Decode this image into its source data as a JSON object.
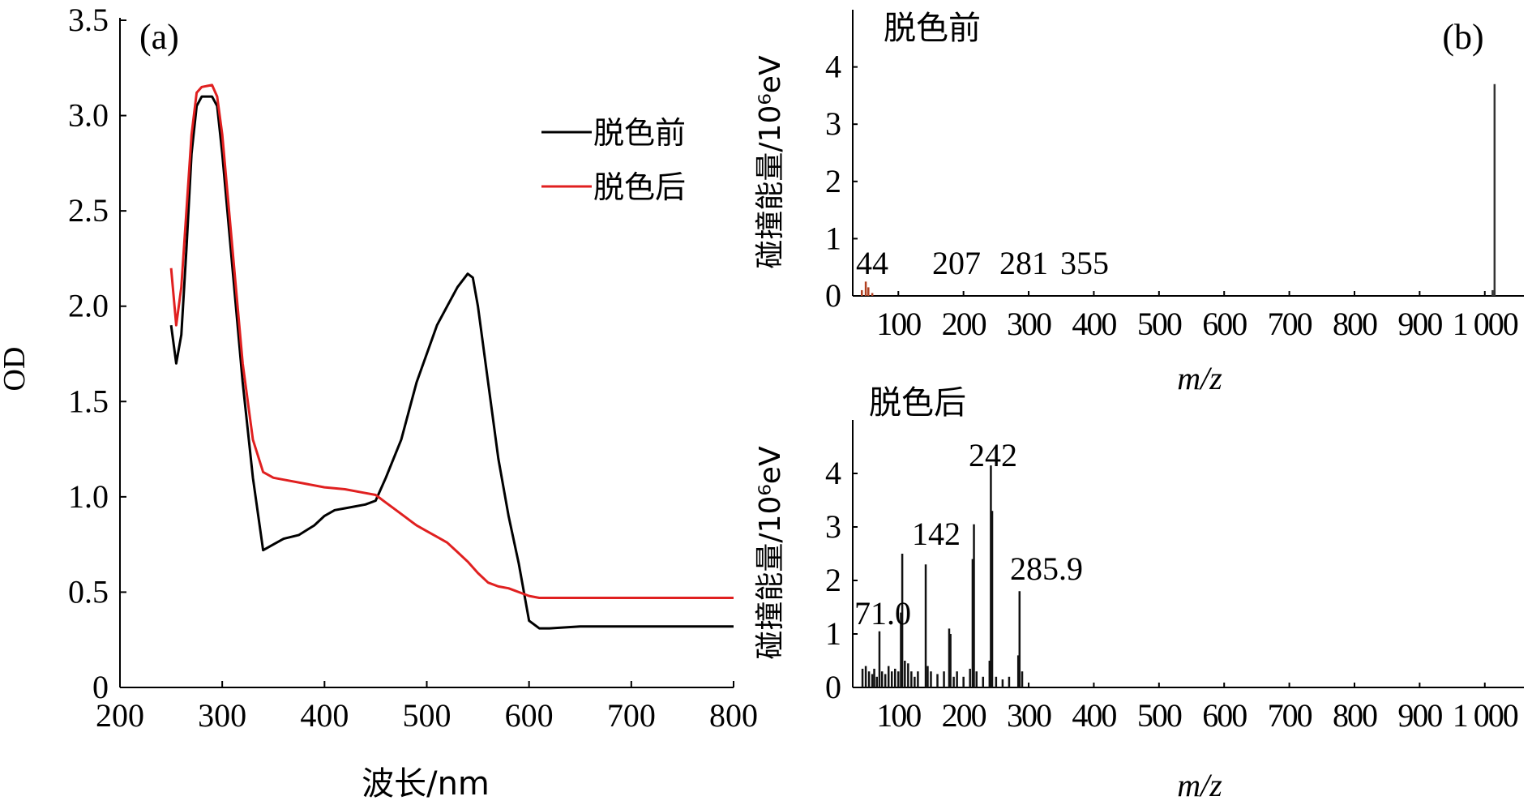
{
  "panel_a": {
    "label": "(a)",
    "xlabel": "波长/nm",
    "ylabel": "OD",
    "chart_data": {
      "type": "line",
      "xlim": [
        200,
        800
      ],
      "ylim": [
        0,
        3.5
      ],
      "x_ticks": [
        200,
        300,
        400,
        500,
        600,
        700,
        800
      ],
      "x_tick_labels": [
        "200",
        "300",
        "400",
        "500",
        "600",
        "700",
        "800"
      ],
      "y_ticks": [
        0,
        0.5,
        1.0,
        1.5,
        2.0,
        2.5,
        3.0,
        3.5
      ],
      "y_tick_labels": [
        "0",
        "0.5",
        "1.0",
        "1.5",
        "2.0",
        "2.5",
        "3.0",
        "3.5"
      ],
      "legend_position": "top-right",
      "series": [
        {
          "name": "脱色前",
          "color": "#000000",
          "points": [
            [
              250,
              1.9
            ],
            [
              255,
              1.7
            ],
            [
              260,
              1.85
            ],
            [
              265,
              2.3
            ],
            [
              270,
              2.8
            ],
            [
              275,
              3.05
            ],
            [
              280,
              3.1
            ],
            [
              290,
              3.1
            ],
            [
              295,
              3.05
            ],
            [
              300,
              2.8
            ],
            [
              310,
              2.2
            ],
            [
              320,
              1.6
            ],
            [
              330,
              1.1
            ],
            [
              340,
              0.72
            ],
            [
              350,
              0.75
            ],
            [
              360,
              0.78
            ],
            [
              375,
              0.8
            ],
            [
              390,
              0.85
            ],
            [
              400,
              0.9
            ],
            [
              410,
              0.93
            ],
            [
              420,
              0.94
            ],
            [
              440,
              0.96
            ],
            [
              450,
              0.98
            ],
            [
              460,
              1.1
            ],
            [
              475,
              1.3
            ],
            [
              490,
              1.6
            ],
            [
              500,
              1.75
            ],
            [
              510,
              1.9
            ],
            [
              520,
              2.0
            ],
            [
              530,
              2.1
            ],
            [
              540,
              2.17
            ],
            [
              545,
              2.15
            ],
            [
              550,
              2.0
            ],
            [
              560,
              1.6
            ],
            [
              570,
              1.2
            ],
            [
              580,
              0.9
            ],
            [
              590,
              0.65
            ],
            [
              600,
              0.35
            ],
            [
              610,
              0.31
            ],
            [
              620,
              0.31
            ],
            [
              650,
              0.32
            ],
            [
              700,
              0.32
            ],
            [
              750,
              0.32
            ],
            [
              800,
              0.32
            ]
          ]
        },
        {
          "name": "脱色后",
          "color": "#e02020",
          "points": [
            [
              250,
              2.2
            ],
            [
              255,
              1.9
            ],
            [
              260,
              2.1
            ],
            [
              265,
              2.5
            ],
            [
              270,
              2.9
            ],
            [
              275,
              3.12
            ],
            [
              280,
              3.15
            ],
            [
              290,
              3.16
            ],
            [
              295,
              3.1
            ],
            [
              300,
              2.9
            ],
            [
              310,
              2.3
            ],
            [
              320,
              1.7
            ],
            [
              330,
              1.3
            ],
            [
              340,
              1.13
            ],
            [
              350,
              1.1
            ],
            [
              360,
              1.09
            ],
            [
              380,
              1.07
            ],
            [
              400,
              1.05
            ],
            [
              420,
              1.04
            ],
            [
              440,
              1.02
            ],
            [
              450,
              1.01
            ],
            [
              460,
              0.97
            ],
            [
              470,
              0.93
            ],
            [
              480,
              0.89
            ],
            [
              490,
              0.85
            ],
            [
              500,
              0.82
            ],
            [
              510,
              0.79
            ],
            [
              520,
              0.76
            ],
            [
              530,
              0.71
            ],
            [
              540,
              0.66
            ],
            [
              550,
              0.6
            ],
            [
              560,
              0.55
            ],
            [
              570,
              0.53
            ],
            [
              580,
              0.52
            ],
            [
              590,
              0.5
            ],
            [
              600,
              0.48
            ],
            [
              610,
              0.47
            ],
            [
              650,
              0.47
            ],
            [
              700,
              0.47
            ],
            [
              750,
              0.47
            ],
            [
              800,
              0.47
            ]
          ]
        }
      ]
    }
  },
  "panel_b": {
    "label": "(b)",
    "top": {
      "title": "脱色前",
      "ylabel": "碰撞能量/10⁶eV",
      "xlabel": "m/z",
      "annotations": [
        "44",
        "207",
        "281",
        "355"
      ],
      "chart_data": {
        "type": "bar",
        "xlim": [
          30,
          1060
        ],
        "ylim": [
          0,
          5
        ],
        "x_ticks": [
          100,
          200,
          300,
          400,
          500,
          600,
          700,
          800,
          900,
          1000
        ],
        "x_tick_labels": [
          "100",
          "200",
          "300",
          "400",
          "500",
          "600",
          "700",
          "800",
          "900",
          "1 000"
        ],
        "y_ticks": [
          0,
          1,
          2,
          3,
          4
        ],
        "y_tick_labels": [
          "0",
          "1",
          "2",
          "3",
          "4"
        ],
        "peaks": [
          [
            44,
            0.1
          ],
          [
            50,
            0.25
          ],
          [
            54,
            0.15
          ],
          [
            60,
            0.05
          ],
          [
            1012,
            0.1
          ],
          [
            1015,
            3.7
          ]
        ]
      }
    },
    "bottom": {
      "title": "脱色后",
      "ylabel": "碰撞能量/10⁶eV",
      "xlabel": "m/z",
      "annotations": [
        "71.0",
        "142",
        "242",
        "285.9"
      ],
      "chart_data": {
        "type": "bar",
        "xlim": [
          30,
          1060
        ],
        "ylim": [
          0,
          5
        ],
        "x_ticks": [
          100,
          200,
          300,
          400,
          500,
          600,
          700,
          800,
          900,
          1000
        ],
        "x_tick_labels": [
          "100",
          "200",
          "300",
          "400",
          "500",
          "600",
          "700",
          "800",
          "900",
          "1 000"
        ],
        "y_ticks": [
          0,
          1,
          2,
          3,
          4
        ],
        "y_tick_labels": [
          "0",
          "1",
          "2",
          "3",
          "4"
        ],
        "peaks": [
          [
            45,
            0.35
          ],
          [
            50,
            0.4
          ],
          [
            55,
            0.3
          ],
          [
            60,
            0.25
          ],
          [
            63,
            0.35
          ],
          [
            67,
            0.2
          ],
          [
            71,
            1.05
          ],
          [
            75,
            0.3
          ],
          [
            80,
            0.25
          ],
          [
            85,
            0.4
          ],
          [
            90,
            0.3
          ],
          [
            95,
            0.35
          ],
          [
            100,
            0.3
          ],
          [
            104,
            1.4
          ],
          [
            106,
            2.5
          ],
          [
            110,
            0.5
          ],
          [
            115,
            0.45
          ],
          [
            120,
            0.3
          ],
          [
            125,
            0.2
          ],
          [
            130,
            0.3
          ],
          [
            142,
            2.3
          ],
          [
            145,
            0.4
          ],
          [
            150,
            0.3
          ],
          [
            160,
            0.25
          ],
          [
            170,
            0.3
          ],
          [
            178,
            1.1
          ],
          [
            180,
            1.0
          ],
          [
            185,
            0.2
          ],
          [
            190,
            0.3
          ],
          [
            200,
            0.2
          ],
          [
            210,
            0.35
          ],
          [
            214,
            2.4
          ],
          [
            216,
            3.05
          ],
          [
            220,
            0.3
          ],
          [
            230,
            0.2
          ],
          [
            240,
            0.5
          ],
          [
            242,
            4.15
          ],
          [
            244,
            3.3
          ],
          [
            250,
            0.2
          ],
          [
            260,
            0.15
          ],
          [
            270,
            0.2
          ],
          [
            284,
            0.6
          ],
          [
            286,
            1.8
          ],
          [
            290,
            0.3
          ]
        ]
      }
    }
  }
}
